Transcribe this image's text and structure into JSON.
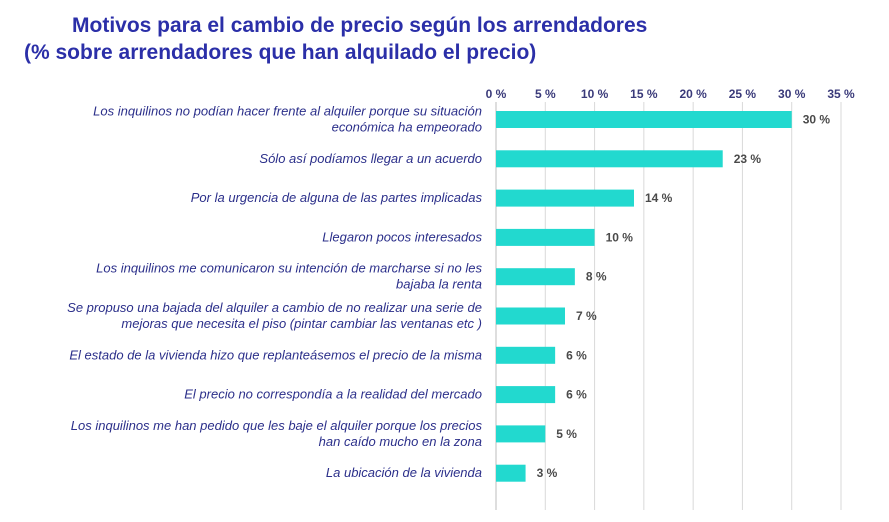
{
  "chart_data": {
    "type": "bar",
    "orientation": "horizontal",
    "title": "Motivos para el cambio de precio según los arrendadores",
    "subtitle": "(% sobre arrendadores que han alquilado el precio)",
    "categories": [
      [
        "Los inquilinos no podían hacer frente al alquiler porque su situación",
        "económica ha empeorado"
      ],
      [
        "Sólo así podíamos llegar a un acuerdo"
      ],
      [
        "Por la urgencia de alguna de las partes implicadas"
      ],
      [
        "Llegaron pocos interesados"
      ],
      [
        "Los inquilinos me comunicaron su intención de marcharse si no les",
        "bajaba la renta"
      ],
      [
        "Se propuso una bajada del alquiler a cambio de no realizar una serie de",
        "mejoras que necesita el piso (pintar cambiar las ventanas etc )"
      ],
      [
        "El estado de la vivienda hizo que replanteásemos el precio de la misma"
      ],
      [
        "El precio no correspondía a la realidad del mercado"
      ],
      [
        "Los inquilinos me han pedido que les baje el alquiler porque los precios",
        "han caído mucho en la zona"
      ],
      [
        "La ubicación de la vivienda"
      ]
    ],
    "values": [
      30,
      23,
      14,
      10,
      8,
      7,
      6,
      6,
      5,
      3
    ],
    "value_labels": [
      "30 %",
      "23 %",
      "14 %",
      "10 %",
      "8 %",
      "7 %",
      "6 %",
      "6 %",
      "5 %",
      "3 %"
    ],
    "xticks": [
      "0 %",
      "5 %",
      "10 %",
      "15 %",
      "20 %",
      "25 %",
      "30 %",
      "35 %"
    ],
    "xlim": [
      0,
      35
    ],
    "grid": true,
    "axis_position": "top",
    "colors": {
      "bar": "#22d9cf",
      "title": "#2b2fa8",
      "label": "#2b2f8a",
      "grid": "#d9d9d9"
    }
  }
}
